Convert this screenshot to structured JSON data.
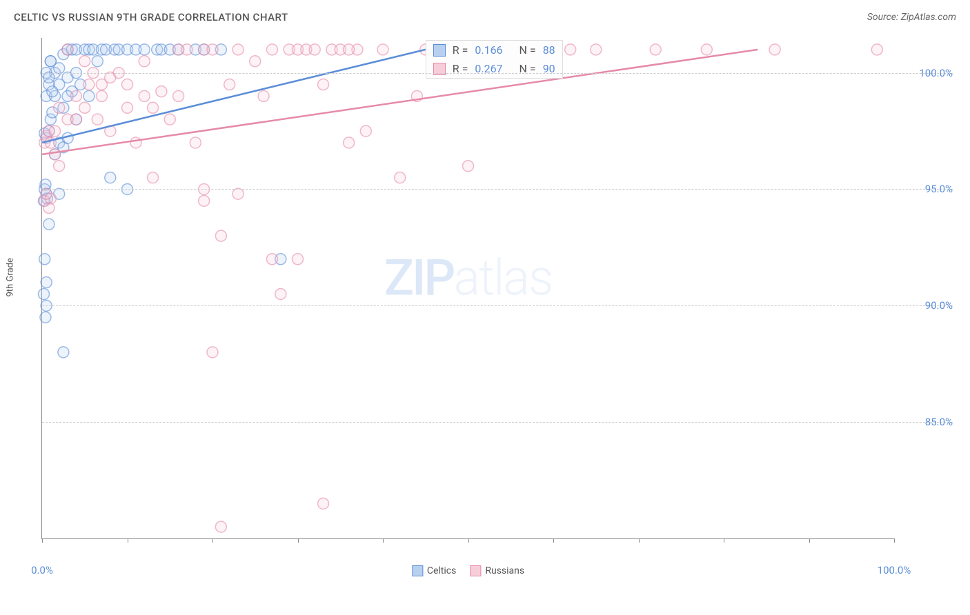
{
  "title": "CELTIC VS RUSSIAN 9TH GRADE CORRELATION CHART",
  "source": "Source: ZipAtlas.com",
  "y_axis_label": "9th Grade",
  "watermark_bold": "ZIP",
  "watermark_light": "atlas",
  "chart": {
    "type": "scatter",
    "background_color": "#ffffff",
    "grid_color": "#cccccc",
    "axis_color": "#888888",
    "xlim": [
      0,
      100
    ],
    "ylim": [
      80,
      101.5
    ],
    "x_ticks": [
      0,
      10,
      20,
      30,
      40,
      50,
      60,
      70,
      80,
      90,
      100
    ],
    "x_tick_labels": {
      "0": "0.0%",
      "100": "100.0%"
    },
    "y_ticks": [
      85,
      90,
      95,
      100
    ],
    "y_tick_labels": {
      "85": "85.0%",
      "90": "90.0%",
      "95": "95.0%",
      "100": "100.0%"
    },
    "marker_radius": 8,
    "marker_stroke_width": 1.5,
    "marker_fill_opacity": 0.25,
    "trend_line_width": 2.5,
    "series": [
      {
        "name": "Celtics",
        "color": "#5b8dd8",
        "fill": "#b8d0f0",
        "R": "0.166",
        "N": "88",
        "trend": {
          "x1": 0,
          "y1": 97.0,
          "x2": 45,
          "y2": 101.0
        },
        "points": [
          [
            0.2,
            94.5
          ],
          [
            0.3,
            95.0
          ],
          [
            0.5,
            94.8
          ],
          [
            0.4,
            95.2
          ],
          [
            0.6,
            94.6
          ],
          [
            0.3,
            97.4
          ],
          [
            0.5,
            97.2
          ],
          [
            0.8,
            97.5
          ],
          [
            1.0,
            98.0
          ],
          [
            1.2,
            98.3
          ],
          [
            0.5,
            99.0
          ],
          [
            0.8,
            99.5
          ],
          [
            1.5,
            100.0
          ],
          [
            2.0,
            100.2
          ],
          [
            1.0,
            100.5
          ],
          [
            2.5,
            100.8
          ],
          [
            3.0,
            101.0
          ],
          [
            3.5,
            101.0
          ],
          [
            4.0,
            101.0
          ],
          [
            5.0,
            101.0
          ],
          [
            5.5,
            101.0
          ],
          [
            6.0,
            101.0
          ],
          [
            7.0,
            101.0
          ],
          [
            7.5,
            101.0
          ],
          [
            8.5,
            101.0
          ],
          [
            9.0,
            101.0
          ],
          [
            10.0,
            101.0
          ],
          [
            11.0,
            101.0
          ],
          [
            12.0,
            101.0
          ],
          [
            13.5,
            101.0
          ],
          [
            14.0,
            101.0
          ],
          [
            15.0,
            101.0
          ],
          [
            16.0,
            101.0
          ],
          [
            18.0,
            101.0
          ],
          [
            19.0,
            101.0
          ],
          [
            21.0,
            101.0
          ],
          [
            1.5,
            96.5
          ],
          [
            2.0,
            97.0
          ],
          [
            2.5,
            96.8
          ],
          [
            3.0,
            97.2
          ],
          [
            0.3,
            92.0
          ],
          [
            0.5,
            91.0
          ],
          [
            0.8,
            93.5
          ],
          [
            3.0,
            99.8
          ],
          [
            4.0,
            100.0
          ],
          [
            3.5,
            99.2
          ],
          [
            4.5,
            99.5
          ],
          [
            5.5,
            99.0
          ],
          [
            6.5,
            100.5
          ],
          [
            2.0,
            94.8
          ],
          [
            2.5,
            88.0
          ],
          [
            8.0,
            95.5
          ],
          [
            10.0,
            95.0
          ],
          [
            28.0,
            92.0
          ],
          [
            0.2,
            90.5
          ],
          [
            0.5,
            90.0
          ],
          [
            0.4,
            89.5
          ],
          [
            1.5,
            99.0
          ],
          [
            2.0,
            99.5
          ],
          [
            2.5,
            98.5
          ],
          [
            3.0,
            99.0
          ],
          [
            4.0,
            98.0
          ],
          [
            0.5,
            100.0
          ],
          [
            1.0,
            100.5
          ],
          [
            0.8,
            99.8
          ],
          [
            1.2,
            99.2
          ]
        ]
      },
      {
        "name": "Russians",
        "color": "#e68aa7",
        "fill": "#f7cdda",
        "R": "0.267",
        "N": "90",
        "trend": {
          "x1": 0,
          "y1": 96.5,
          "x2": 84,
          "y2": 101.0
        },
        "points": [
          [
            0.3,
            97.0
          ],
          [
            0.5,
            97.3
          ],
          [
            0.8,
            97.5
          ],
          [
            1.0,
            97.0
          ],
          [
            1.5,
            96.5
          ],
          [
            2.0,
            96.0
          ],
          [
            3.0,
            101.0
          ],
          [
            5.0,
            100.5
          ],
          [
            6.0,
            100.0
          ],
          [
            7.0,
            99.5
          ],
          [
            8.0,
            99.8
          ],
          [
            9.0,
            100.0
          ],
          [
            10.0,
            99.5
          ],
          [
            12.0,
            99.0
          ],
          [
            13.0,
            98.5
          ],
          [
            14.0,
            99.2
          ],
          [
            15.0,
            98.0
          ],
          [
            16.0,
            101.0
          ],
          [
            17.0,
            101.0
          ],
          [
            19.0,
            101.0
          ],
          [
            20.0,
            101.0
          ],
          [
            23.0,
            101.0
          ],
          [
            25.0,
            100.5
          ],
          [
            27.0,
            101.0
          ],
          [
            29.0,
            101.0
          ],
          [
            30.0,
            101.0
          ],
          [
            31.0,
            101.0
          ],
          [
            32.0,
            101.0
          ],
          [
            34.0,
            101.0
          ],
          [
            35.0,
            101.0
          ],
          [
            37.0,
            101.0
          ],
          [
            40.0,
            101.0
          ],
          [
            45.0,
            101.0
          ],
          [
            48.0,
            100.0
          ],
          [
            52.0,
            101.0
          ],
          [
            55.0,
            101.0
          ],
          [
            59.0,
            101.0
          ],
          [
            62.0,
            101.0
          ],
          [
            65.0,
            101.0
          ],
          [
            72.0,
            101.0
          ],
          [
            78.0,
            101.0
          ],
          [
            86.0,
            101.0
          ],
          [
            98.0,
            101.0
          ],
          [
            0.3,
            94.5
          ],
          [
            0.5,
            94.8
          ],
          [
            0.8,
            94.2
          ],
          [
            1.0,
            94.6
          ],
          [
            1.5,
            97.5
          ],
          [
            4.0,
            98.0
          ],
          [
            5.0,
            98.5
          ],
          [
            6.5,
            98.0
          ],
          [
            8.0,
            97.5
          ],
          [
            11.0,
            97.0
          ],
          [
            13.0,
            95.5
          ],
          [
            18.0,
            97.0
          ],
          [
            23.0,
            94.8
          ],
          [
            19.0,
            95.0
          ],
          [
            19.0,
            94.5
          ],
          [
            21.0,
            93.0
          ],
          [
            27.0,
            92.0
          ],
          [
            30.0,
            92.0
          ],
          [
            28.0,
            90.5
          ],
          [
            36.0,
            97.0
          ],
          [
            38.0,
            97.5
          ],
          [
            42.0,
            95.5
          ],
          [
            50.0,
            96.0
          ],
          [
            20.0,
            88.0
          ],
          [
            21.0,
            80.5
          ],
          [
            33.0,
            81.5
          ],
          [
            4.0,
            99.0
          ],
          [
            5.5,
            99.5
          ],
          [
            7.0,
            99.0
          ],
          [
            2.0,
            98.5
          ],
          [
            3.0,
            98.0
          ],
          [
            10.0,
            98.5
          ],
          [
            12.0,
            100.5
          ],
          [
            16.0,
            99.0
          ],
          [
            22.0,
            99.5
          ],
          [
            26.0,
            99.0
          ],
          [
            33.0,
            99.5
          ],
          [
            36.0,
            101.0
          ],
          [
            44.0,
            99.0
          ]
        ]
      }
    ]
  },
  "legend_labels": {
    "celtics": "Celtics",
    "russians": "Russians"
  },
  "stats_labels": {
    "R": "R =",
    "N": "N ="
  }
}
